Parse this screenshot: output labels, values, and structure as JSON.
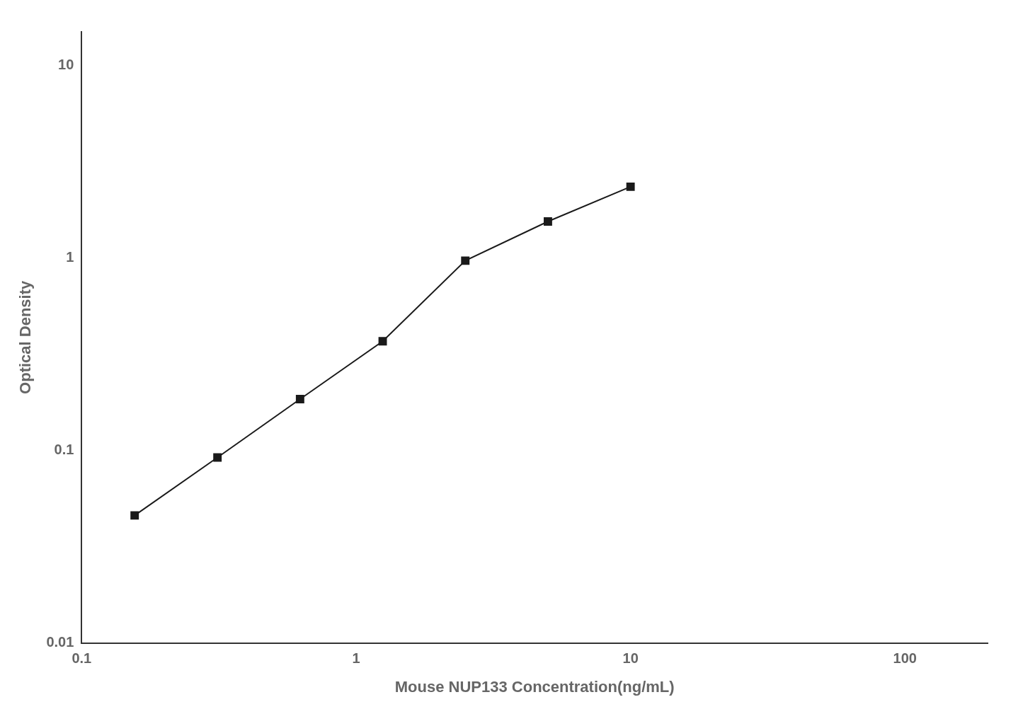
{
  "chart_data": {
    "type": "line",
    "x": [
      0.156,
      0.3125,
      0.625,
      1.25,
      2.5,
      5.0,
      10.0
    ],
    "values": [
      0.046,
      0.092,
      0.185,
      0.37,
      0.97,
      1.55,
      2.35
    ],
    "xlabel": "Mouse NUP133 Concentration(ng/mL)",
    "ylabel": "Optical Density",
    "xlim": [
      0.1,
      200
    ],
    "ylim": [
      0.01,
      15
    ],
    "xticks": [
      0.1,
      1,
      10,
      100
    ],
    "yticks": [
      0.01,
      0.1,
      1,
      10
    ],
    "log": true,
    "grid": false,
    "color": "#1a1a1a",
    "marker": "square"
  }
}
